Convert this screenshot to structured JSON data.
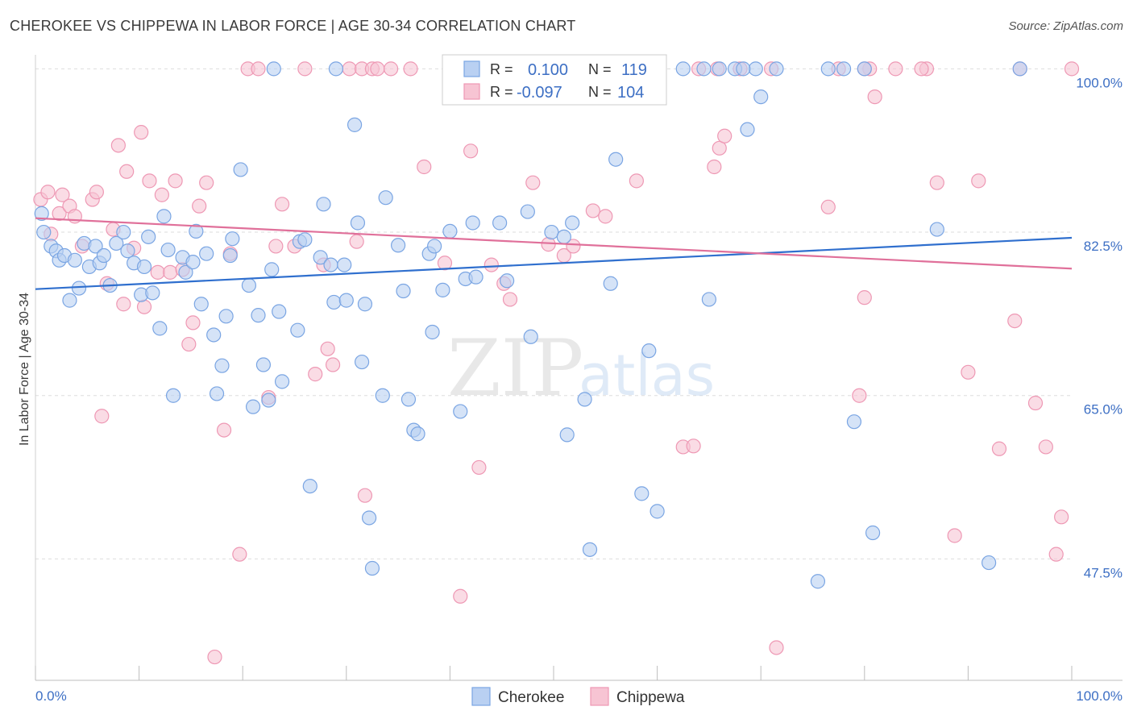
{
  "header": {
    "title": "CHEROKEE VS CHIPPEWA IN LABOR FORCE | AGE 30-34 CORRELATION CHART",
    "source": "Source: ZipAtlas.com"
  },
  "watermark": {
    "zip": "ZIP",
    "atlas": "atlas"
  },
  "colors": {
    "cherokee_fill": "#b9d0f2",
    "cherokee_stroke": "#7aa5e3",
    "cherokee_line": "#2f6fce",
    "chippewa_fill": "#f7c4d3",
    "chippewa_stroke": "#ee98b4",
    "chippewa_line": "#e0709a",
    "tick_label": "#3d6fc4",
    "grid": "#dddddd"
  },
  "legend": {
    "rows": [
      {
        "r_label": "R =",
        "r_value": "0.100",
        "n_label": "N =",
        "n_value": "119"
      },
      {
        "r_label": "R =",
        "r_value": "-0.097",
        "n_label": "N =",
        "n_value": "104"
      }
    ],
    "bottom": [
      "Cherokee",
      "Chippewa"
    ]
  },
  "chart_data": {
    "type": "scatter",
    "xlabel": "",
    "ylabel": "In Labor Force | Age 30-34",
    "x_ticks": [
      "0.0%",
      "100.0%"
    ],
    "y_ticks": [
      {
        "value": 100.0,
        "label": "100.0%"
      },
      {
        "value": 82.5,
        "label": "82.5%"
      },
      {
        "value": 65.0,
        "label": "65.0%"
      },
      {
        "value": 47.5,
        "label": "47.5%"
      }
    ],
    "xlim": [
      0,
      100
    ],
    "ylim": [
      34.5,
      101.5
    ],
    "grid": true,
    "legend_position": "top-center",
    "series": [
      {
        "name": "Cherokee",
        "r": 0.1,
        "n": 119,
        "trend": {
          "x": [
            0,
            100
          ],
          "y": [
            76.4,
            81.9
          ]
        },
        "points": [
          [
            0.6,
            84.5
          ],
          [
            0.8,
            82.5
          ],
          [
            1.5,
            81.0
          ],
          [
            2.0,
            80.5
          ],
          [
            2.3,
            79.5
          ],
          [
            2.8,
            80.0
          ],
          [
            3.3,
            75.2
          ],
          [
            3.8,
            79.5
          ],
          [
            4.2,
            76.5
          ],
          [
            4.7,
            81.3
          ],
          [
            5.2,
            78.8
          ],
          [
            5.8,
            81.0
          ],
          [
            6.2,
            79.2
          ],
          [
            6.6,
            80.0
          ],
          [
            7.2,
            76.8
          ],
          [
            7.8,
            81.3
          ],
          [
            8.5,
            82.5
          ],
          [
            8.9,
            80.5
          ],
          [
            9.5,
            79.2
          ],
          [
            10.2,
            75.8
          ],
          [
            10.5,
            78.8
          ],
          [
            10.9,
            82.0
          ],
          [
            11.3,
            76.0
          ],
          [
            12.0,
            72.2
          ],
          [
            12.4,
            84.2
          ],
          [
            12.8,
            80.6
          ],
          [
            13.3,
            65.0
          ],
          [
            14.2,
            79.8
          ],
          [
            14.5,
            78.2
          ],
          [
            15.2,
            79.3
          ],
          [
            15.5,
            82.6
          ],
          [
            16.0,
            74.8
          ],
          [
            16.5,
            80.2
          ],
          [
            17.2,
            71.5
          ],
          [
            17.5,
            65.2
          ],
          [
            18.0,
            68.2
          ],
          [
            18.4,
            73.5
          ],
          [
            18.8,
            80.0
          ],
          [
            19.0,
            81.8
          ],
          [
            19.8,
            89.2
          ],
          [
            20.6,
            76.8
          ],
          [
            21.0,
            63.8
          ],
          [
            21.5,
            73.6
          ],
          [
            22.0,
            68.3
          ],
          [
            22.5,
            64.5
          ],
          [
            23.5,
            74.0
          ],
          [
            23.8,
            66.5
          ],
          [
            22.8,
            78.5
          ],
          [
            25.3,
            72.0
          ],
          [
            25.5,
            81.5
          ],
          [
            26.0,
            81.7
          ],
          [
            26.5,
            55.3
          ],
          [
            27.5,
            79.8
          ],
          [
            27.8,
            85.5
          ],
          [
            28.5,
            79.0
          ],
          [
            28.8,
            75.0
          ],
          [
            29.8,
            79.0
          ],
          [
            30.0,
            75.2
          ],
          [
            30.8,
            94.0
          ],
          [
            31.1,
            83.5
          ],
          [
            31.5,
            68.6
          ],
          [
            31.8,
            74.8
          ],
          [
            32.2,
            51.9
          ],
          [
            32.5,
            46.5
          ],
          [
            33.5,
            65.0
          ],
          [
            33.8,
            86.2
          ],
          [
            35.0,
            81.1
          ],
          [
            35.5,
            76.2
          ],
          [
            36.0,
            64.6
          ],
          [
            36.5,
            61.3
          ],
          [
            36.9,
            60.9
          ],
          [
            38.0,
            80.2
          ],
          [
            38.3,
            71.8
          ],
          [
            38.5,
            81.0
          ],
          [
            39.3,
            76.3
          ],
          [
            40.0,
            82.6
          ],
          [
            41.0,
            63.3
          ],
          [
            41.5,
            77.5
          ],
          [
            42.2,
            83.5
          ],
          [
            42.5,
            77.7
          ],
          [
            44.8,
            83.5
          ],
          [
            45.5,
            77.3
          ],
          [
            47.5,
            84.7
          ],
          [
            47.8,
            71.3
          ],
          [
            49.8,
            82.5
          ],
          [
            51.0,
            82.0
          ],
          [
            51.3,
            60.8
          ],
          [
            51.8,
            83.5
          ],
          [
            53.0,
            64.6
          ],
          [
            53.5,
            48.5
          ],
          [
            55.5,
            77.0
          ],
          [
            56.0,
            90.3
          ],
          [
            58.5,
            54.5
          ],
          [
            59.2,
            69.8
          ],
          [
            60.0,
            52.6
          ],
          [
            62.5,
            100.0
          ],
          [
            64.5,
            100.0
          ],
          [
            65.0,
            75.3
          ],
          [
            66.0,
            100.0
          ],
          [
            67.5,
            100.0
          ],
          [
            68.7,
            93.5
          ],
          [
            69.5,
            100.0
          ],
          [
            70.0,
            97.0
          ],
          [
            71.5,
            100.0
          ],
          [
            75.5,
            45.1
          ],
          [
            76.5,
            100.0
          ],
          [
            79.0,
            62.2
          ],
          [
            80.0,
            100.0
          ],
          [
            80.8,
            50.3
          ],
          [
            87.0,
            82.8
          ],
          [
            92.0,
            47.1
          ],
          [
            95.0,
            100.0
          ],
          [
            23.0,
            100.0
          ],
          [
            29.0,
            100.0
          ],
          [
            50.8,
            100.0
          ],
          [
            52.5,
            100.0
          ],
          [
            68.3,
            100.0
          ],
          [
            78.0,
            100.0
          ]
        ]
      },
      {
        "name": "Chippewa",
        "r": -0.097,
        "n": 104,
        "trend": {
          "x": [
            0,
            100
          ],
          "y": [
            84.0,
            78.6
          ]
        },
        "points": [
          [
            0.5,
            86.0
          ],
          [
            1.2,
            86.8
          ],
          [
            1.5,
            82.3
          ],
          [
            2.3,
            84.5
          ],
          [
            2.6,
            86.5
          ],
          [
            3.3,
            85.3
          ],
          [
            3.8,
            84.2
          ],
          [
            4.5,
            81.0
          ],
          [
            5.5,
            86.0
          ],
          [
            5.9,
            86.8
          ],
          [
            6.4,
            62.8
          ],
          [
            6.9,
            77.0
          ],
          [
            7.5,
            82.8
          ],
          [
            8.0,
            91.8
          ],
          [
            8.5,
            74.8
          ],
          [
            8.8,
            89.0
          ],
          [
            9.5,
            80.8
          ],
          [
            10.2,
            93.2
          ],
          [
            10.5,
            74.5
          ],
          [
            11.0,
            88.0
          ],
          [
            11.8,
            78.2
          ],
          [
            12.2,
            86.5
          ],
          [
            13.0,
            78.2
          ],
          [
            13.5,
            88.0
          ],
          [
            14.2,
            78.5
          ],
          [
            14.8,
            70.5
          ],
          [
            15.2,
            72.8
          ],
          [
            15.8,
            85.3
          ],
          [
            16.5,
            87.8
          ],
          [
            17.3,
            37.0
          ],
          [
            18.2,
            61.3
          ],
          [
            18.8,
            80.2
          ],
          [
            19.7,
            48.0
          ],
          [
            20.5,
            100.0
          ],
          [
            22.5,
            64.8
          ],
          [
            23.2,
            81.0
          ],
          [
            23.8,
            85.5
          ],
          [
            25.0,
            81.0
          ],
          [
            26.0,
            100.0
          ],
          [
            27.0,
            67.3
          ],
          [
            27.8,
            79.0
          ],
          [
            28.2,
            70.0
          ],
          [
            28.7,
            68.3
          ],
          [
            30.3,
            100.0
          ],
          [
            31.0,
            81.5
          ],
          [
            31.5,
            100.0
          ],
          [
            31.8,
            54.3
          ],
          [
            32.5,
            100.0
          ],
          [
            33.0,
            100.0
          ],
          [
            34.3,
            100.0
          ],
          [
            37.5,
            89.5
          ],
          [
            39.5,
            79.2
          ],
          [
            41.0,
            43.5
          ],
          [
            42.0,
            91.2
          ],
          [
            42.8,
            57.3
          ],
          [
            44.0,
            79.0
          ],
          [
            45.2,
            77.0
          ],
          [
            45.8,
            75.3
          ],
          [
            47.5,
            100.0
          ],
          [
            48.0,
            87.8
          ],
          [
            49.5,
            81.2
          ],
          [
            50.0,
            100.0
          ],
          [
            51.0,
            80.0
          ],
          [
            51.9,
            81.0
          ],
          [
            53.8,
            84.8
          ],
          [
            55.0,
            84.2
          ],
          [
            55.5,
            100.0
          ],
          [
            58.0,
            88.0
          ],
          [
            62.5,
            59.5
          ],
          [
            63.5,
            59.6
          ],
          [
            65.5,
            89.5
          ],
          [
            66.0,
            91.5
          ],
          [
            66.5,
            92.8
          ],
          [
            68.0,
            100.0
          ],
          [
            71.0,
            100.0
          ],
          [
            71.5,
            38.0
          ],
          [
            76.5,
            85.2
          ],
          [
            77.5,
            100.0
          ],
          [
            79.5,
            65.0
          ],
          [
            80.0,
            75.5
          ],
          [
            80.5,
            100.0
          ],
          [
            81.0,
            97.0
          ],
          [
            83.0,
            100.0
          ],
          [
            86.0,
            100.0
          ],
          [
            87.0,
            87.8
          ],
          [
            88.7,
            50.0
          ],
          [
            90.0,
            67.5
          ],
          [
            91.0,
            88.0
          ],
          [
            93.0,
            59.3
          ],
          [
            94.5,
            73.0
          ],
          [
            96.5,
            64.2
          ],
          [
            97.5,
            59.5
          ],
          [
            98.5,
            48.0
          ],
          [
            99.0,
            52.0
          ],
          [
            100.0,
            100.0
          ],
          [
            95.0,
            100.0
          ],
          [
            80.0,
            100.0
          ],
          [
            85.5,
            100.0
          ],
          [
            65.8,
            100.0
          ],
          [
            64.0,
            100.0
          ],
          [
            52.5,
            100.0
          ],
          [
            40.0,
            100.0
          ],
          [
            36.2,
            100.0
          ],
          [
            21.5,
            100.0
          ]
        ]
      }
    ]
  }
}
